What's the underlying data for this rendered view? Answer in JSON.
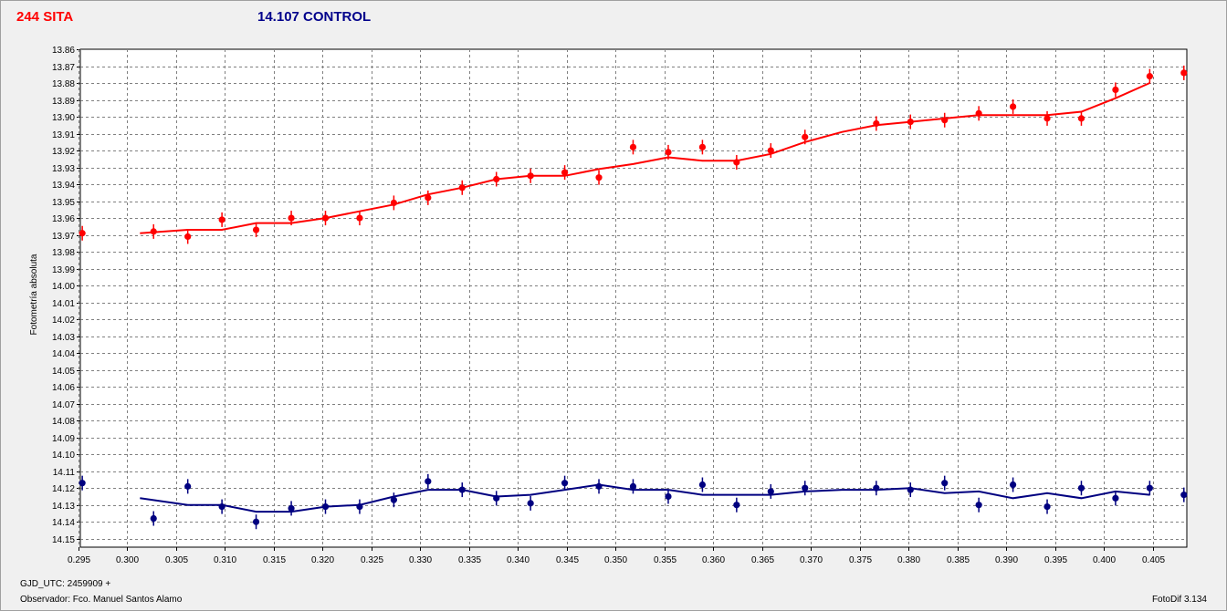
{
  "titles": {
    "target": "244 SITA",
    "control": "14.107 CONTROL"
  },
  "footer": {
    "gjd": "GJD_UTC: 2459909 +",
    "observer": "Observador: Fco. Manuel Santos Alamo",
    "software": "FotoDif 3.134"
  },
  "colors": {
    "target": "#ff0000",
    "control": "#000080",
    "grid": "#808080"
  },
  "chart_data": {
    "type": "scatter",
    "ylabel": "Fotometría absoluta",
    "xlim": [
      0.2952,
      0.4085
    ],
    "ylim": [
      13.86,
      14.155
    ],
    "y_inverted": true,
    "grid": true,
    "x_ticks": [
      0.295,
      0.3,
      0.305,
      0.31,
      0.315,
      0.32,
      0.325,
      0.33,
      0.335,
      0.34,
      0.345,
      0.35,
      0.355,
      0.36,
      0.365,
      0.37,
      0.375,
      0.38,
      0.385,
      0.39,
      0.395,
      0.4,
      0.405
    ],
    "x_tick_labels": [
      "0.295",
      "0.300",
      "0.305",
      "0.310",
      "0.315",
      "0.320",
      "0.325",
      "0.330",
      "0.335",
      "0.340",
      "0.345",
      "0.350",
      "0.355",
      "0.360",
      "0.365",
      "0.370",
      "0.375",
      "0.380",
      "0.385",
      "0.390",
      "0.395",
      "0.400",
      "0.405"
    ],
    "y_ticks": [
      13.86,
      13.87,
      13.88,
      13.89,
      13.9,
      13.91,
      13.92,
      13.93,
      13.94,
      13.95,
      13.96,
      13.97,
      13.98,
      13.99,
      14.0,
      14.01,
      14.02,
      14.03,
      14.04,
      14.05,
      14.06,
      14.07,
      14.08,
      14.09,
      14.1,
      14.11,
      14.12,
      14.13,
      14.14,
      14.15
    ],
    "y_tick_labels": [
      "13.86",
      "13.87",
      "13.88",
      "13.89",
      "13.90",
      "13.91",
      "13.92",
      "13.93",
      "13.94",
      "13.95",
      "13.96",
      "13.97",
      "13.98",
      "13.99",
      "14.00",
      "14.01",
      "14.02",
      "14.03",
      "14.04",
      "14.05",
      "14.06",
      "14.07",
      "14.08",
      "14.09",
      "14.10",
      "14.11",
      "14.12",
      "14.13",
      "14.14",
      "14.15"
    ],
    "series": [
      {
        "key": "target",
        "x": [
          0.2954,
          0.3027,
          0.3062,
          0.3097,
          0.3132,
          0.3168,
          0.3203,
          0.3238,
          0.3273,
          0.3308,
          0.3343,
          0.3378,
          0.3413,
          0.3448,
          0.3483,
          0.3518,
          0.3554,
          0.3589,
          0.3624,
          0.3659,
          0.3694,
          0.3767,
          0.3802,
          0.3837,
          0.3872,
          0.3907,
          0.3942,
          0.3977,
          0.4012,
          0.4047,
          0.4082
        ],
        "y": [
          13.969,
          13.968,
          13.971,
          13.961,
          13.967,
          13.96,
          13.96,
          13.96,
          13.951,
          13.948,
          13.942,
          13.937,
          13.935,
          13.933,
          13.936,
          13.918,
          13.921,
          13.918,
          13.927,
          13.92,
          13.912,
          13.904,
          13.903,
          13.902,
          13.898,
          13.894,
          13.901,
          13.901,
          13.884,
          13.876,
          13.874
        ],
        "fit_x": [
          0.3013,
          0.3062,
          0.3097,
          0.3132,
          0.3168,
          0.3203,
          0.3238,
          0.3273,
          0.3308,
          0.3343,
          0.3378,
          0.3413,
          0.3448,
          0.3483,
          0.3518,
          0.3554,
          0.3589,
          0.3624,
          0.3659,
          0.3694,
          0.3732,
          0.3767,
          0.3802,
          0.3837,
          0.3872,
          0.3907,
          0.3942,
          0.3977,
          0.4012,
          0.4047
        ],
        "fit_y": [
          13.969,
          13.967,
          13.967,
          13.963,
          13.963,
          13.96,
          13.956,
          13.952,
          13.946,
          13.942,
          13.937,
          13.935,
          13.935,
          13.931,
          13.928,
          13.924,
          13.926,
          13.926,
          13.922,
          13.915,
          13.909,
          13.905,
          13.903,
          13.901,
          13.899,
          13.899,
          13.899,
          13.897,
          13.889,
          13.88
        ]
      },
      {
        "key": "control",
        "x": [
          0.2954,
          0.3027,
          0.3062,
          0.3097,
          0.3132,
          0.3168,
          0.3203,
          0.3238,
          0.3273,
          0.3308,
          0.3343,
          0.3378,
          0.3413,
          0.3448,
          0.3483,
          0.3518,
          0.3554,
          0.3589,
          0.3624,
          0.3659,
          0.3694,
          0.3767,
          0.3802,
          0.3837,
          0.3872,
          0.3907,
          0.3942,
          0.3977,
          0.4012,
          0.4047,
          0.4082
        ],
        "y": [
          14.117,
          14.138,
          14.119,
          14.131,
          14.14,
          14.132,
          14.131,
          14.131,
          14.127,
          14.116,
          14.121,
          14.126,
          14.129,
          14.117,
          14.119,
          14.119,
          14.125,
          14.118,
          14.13,
          14.122,
          14.12,
          14.12,
          14.121,
          14.117,
          14.13,
          14.118,
          14.131,
          14.12,
          14.126,
          14.12,
          14.124
        ],
        "fit_x": [
          0.3013,
          0.3062,
          0.3097,
          0.3132,
          0.3168,
          0.3203,
          0.3238,
          0.3273,
          0.3308,
          0.3343,
          0.3378,
          0.3413,
          0.3448,
          0.3483,
          0.3518,
          0.3554,
          0.3589,
          0.3624,
          0.3659,
          0.3694,
          0.3732,
          0.3767,
          0.3802,
          0.3837,
          0.3872,
          0.3907,
          0.3942,
          0.3977,
          0.4012,
          0.4047
        ],
        "fit_y": [
          14.126,
          14.13,
          14.13,
          14.134,
          14.134,
          14.131,
          14.13,
          14.125,
          14.121,
          14.121,
          14.125,
          14.124,
          14.121,
          14.118,
          14.121,
          14.121,
          14.124,
          14.124,
          14.124,
          14.122,
          14.121,
          14.121,
          14.12,
          14.123,
          14.122,
          14.126,
          14.123,
          14.126,
          14.122,
          14.124
        ]
      }
    ]
  }
}
